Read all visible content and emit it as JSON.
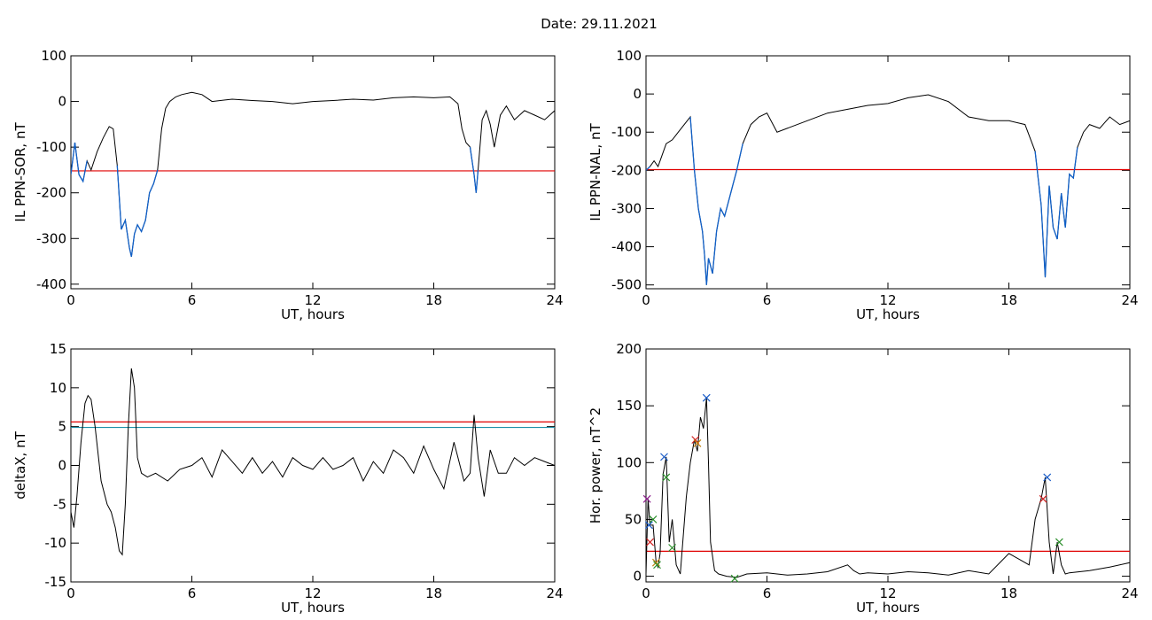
{
  "header": {
    "title": "Date:  29.11.2021"
  },
  "colors": {
    "trace": "#000000",
    "highlight": "#1060c8",
    "threshold_red": "#e00000",
    "threshold_teal": "#1a8fa8",
    "markers": [
      "#8b1a8b",
      "#d02020",
      "#2c8f2c",
      "#1a5cc8",
      "#c08010"
    ]
  },
  "chart_data": [
    {
      "type": "line",
      "xlabel": "UT, hours",
      "ylabel": "IL PPN-SOR, nT",
      "xlim": [
        0,
        24
      ],
      "ylim": [
        -410,
        100
      ],
      "xticks": [
        0,
        6,
        12,
        18,
        24
      ],
      "yticks": [
        100,
        0,
        -100,
        -200,
        -300,
        -400
      ],
      "thresholds": [
        {
          "value": -152,
          "color": "#e00000"
        }
      ],
      "highlight_below_threshold": true,
      "series": [
        {
          "x": [
            0,
            0.2,
            0.4,
            0.6,
            0.8,
            1.0,
            1.3,
            1.6,
            1.9,
            2.1,
            2.3,
            2.5,
            2.7,
            2.9,
            3.0,
            3.15,
            3.3,
            3.5,
            3.7,
            3.9,
            4.1,
            4.3,
            4.5,
            4.7,
            4.9,
            5.2,
            5.5,
            6,
            6.5,
            7,
            8,
            9,
            10,
            11,
            12,
            13,
            14,
            15,
            16,
            17,
            18,
            18.8,
            19.2,
            19.4,
            19.6,
            19.8,
            20.0,
            20.1,
            20.2,
            20.4,
            20.6,
            20.8,
            21.0,
            21.3,
            21.6,
            22,
            22.5,
            23,
            23.5,
            24
          ],
          "y": [
            -160,
            -90,
            -160,
            -175,
            -130,
            -150,
            -110,
            -80,
            -55,
            -60,
            -140,
            -280,
            -260,
            -320,
            -340,
            -290,
            -270,
            -285,
            -260,
            -200,
            -180,
            -150,
            -60,
            -15,
            0,
            10,
            15,
            20,
            15,
            0,
            5,
            2,
            0,
            -5,
            0,
            2,
            5,
            3,
            8,
            10,
            8,
            10,
            -5,
            -60,
            -90,
            -100,
            -160,
            -200,
            -150,
            -40,
            -20,
            -50,
            -100,
            -30,
            -10,
            -40,
            -20,
            -30,
            -40,
            -20
          ]
        }
      ]
    },
    {
      "type": "line",
      "xlabel": "UT, hours",
      "ylabel": "IL PPN-NAL, nT",
      "xlim": [
        0,
        24
      ],
      "ylim": [
        -510,
        100
      ],
      "xticks": [
        0,
        6,
        12,
        18,
        24
      ],
      "yticks": [
        100,
        0,
        -100,
        -200,
        -300,
        -400,
        -500
      ],
      "thresholds": [
        {
          "value": -198,
          "color": "#e00000"
        }
      ],
      "highlight_below_threshold": true,
      "series": [
        {
          "x": [
            0,
            0.2,
            0.4,
            0.6,
            0.8,
            1.0,
            1.3,
            1.6,
            1.9,
            2.2,
            2.4,
            2.6,
            2.8,
            2.9,
            3.0,
            3.1,
            3.3,
            3.5,
            3.7,
            3.9,
            4.1,
            4.3,
            4.5,
            4.8,
            5.2,
            5.6,
            6,
            6.5,
            7,
            8,
            9,
            10,
            11,
            12,
            13,
            14,
            15,
            16,
            17,
            18,
            18.8,
            19.3,
            19.6,
            19.8,
            20.0,
            20.2,
            20.4,
            20.6,
            20.8,
            21.0,
            21.2,
            21.4,
            21.7,
            22,
            22.5,
            23,
            23.5,
            24
          ],
          "y": [
            -200,
            -190,
            -175,
            -190,
            -160,
            -130,
            -120,
            -100,
            -80,
            -60,
            -200,
            -300,
            -360,
            -420,
            -500,
            -430,
            -470,
            -360,
            -300,
            -320,
            -280,
            -240,
            -200,
            -130,
            -80,
            -60,
            -50,
            -100,
            -90,
            -70,
            -50,
            -40,
            -30,
            -25,
            -10,
            -2,
            -20,
            -60,
            -70,
            -70,
            -80,
            -150,
            -290,
            -480,
            -240,
            -350,
            -380,
            -260,
            -350,
            -210,
            -220,
            -140,
            -100,
            -80,
            -90,
            -60,
            -80,
            -70
          ]
        }
      ]
    },
    {
      "type": "line",
      "xlabel": "UT, hours",
      "ylabel": "deltaX, nT",
      "xlim": [
        0,
        24
      ],
      "ylim": [
        -15,
        15
      ],
      "xticks": [
        0,
        6,
        12,
        18,
        24
      ],
      "yticks": [
        15,
        10,
        5,
        0,
        -5,
        -10,
        -15
      ],
      "thresholds": [
        {
          "value": 5.6,
          "color": "#e00000"
        },
        {
          "value": 4.9,
          "color": "#1a8fa8"
        }
      ],
      "highlight_below_threshold": false,
      "series": [
        {
          "x": [
            0,
            0.15,
            0.3,
            0.5,
            0.7,
            0.85,
            1.0,
            1.2,
            1.5,
            1.8,
            2.0,
            2.2,
            2.4,
            2.55,
            2.7,
            2.85,
            3.0,
            3.15,
            3.3,
            3.5,
            3.8,
            4.2,
            4.8,
            5.4,
            6,
            6.5,
            7,
            7.5,
            8,
            8.5,
            9,
            9.5,
            10,
            10.5,
            11,
            11.5,
            12,
            12.5,
            13,
            13.5,
            14,
            14.5,
            15,
            15.5,
            16,
            16.5,
            17,
            17.5,
            18,
            18.5,
            19,
            19.5,
            19.8,
            20.0,
            20.2,
            20.5,
            20.8,
            21.2,
            21.6,
            22,
            22.5,
            23,
            23.5,
            24
          ],
          "y": [
            -6,
            -8,
            -4,
            3,
            8,
            9,
            8.5,
            5,
            -2,
            -5,
            -6,
            -8,
            -11,
            -11.5,
            -5,
            5,
            12.5,
            10,
            1,
            -1,
            -1.5,
            -1,
            -2,
            -0.5,
            0,
            1,
            -1.5,
            2,
            0.5,
            -1,
            1,
            -1,
            0.5,
            -1.5,
            1,
            0,
            -0.5,
            1,
            -0.5,
            0,
            1,
            -2,
            0.5,
            -1,
            2,
            1,
            -1,
            2.5,
            -0.5,
            -3,
            3,
            -2,
            -1,
            6.5,
            1,
            -4,
            2,
            -1,
            -1,
            1,
            0,
            1,
            0.5,
            0
          ]
        }
      ]
    },
    {
      "type": "line",
      "xlabel": "UT, hours",
      "ylabel": "Hor. power, nT^2",
      "xlim": [
        0,
        24
      ],
      "ylim": [
        -5,
        200
      ],
      "xticks": [
        0,
        6,
        12,
        18,
        24
      ],
      "yticks": [
        200,
        150,
        100,
        50,
        0
      ],
      "thresholds": [
        {
          "value": 22,
          "color": "#e00000"
        }
      ],
      "highlight_below_threshold": false,
      "series": [
        {
          "x": [
            0,
            0.1,
            0.2,
            0.35,
            0.5,
            0.6,
            0.7,
            0.85,
            1.0,
            1.15,
            1.3,
            1.5,
            1.7,
            2.0,
            2.2,
            2.4,
            2.55,
            2.7,
            2.85,
            3.0,
            3.1,
            3.2,
            3.4,
            3.6,
            4.0,
            4.5,
            5,
            6,
            7,
            8,
            9,
            10,
            10.3,
            10.6,
            11,
            12,
            13,
            14,
            15,
            16,
            17,
            18,
            18.5,
            19,
            19.3,
            19.6,
            19.8,
            20.0,
            20.2,
            20.4,
            20.6,
            20.8,
            21,
            22,
            23,
            24
          ],
          "y": [
            2,
            68,
            45,
            45,
            12,
            8,
            20,
            90,
            105,
            30,
            50,
            10,
            2,
            70,
            100,
            120,
            110,
            140,
            130,
            157,
            100,
            30,
            5,
            2,
            0,
            -1,
            2,
            3,
            1,
            2,
            4,
            10,
            5,
            2,
            3,
            2,
            4,
            3,
            1,
            5,
            2,
            20,
            15,
            10,
            50,
            68,
            87,
            30,
            2,
            30,
            10,
            2,
            3,
            5,
            8,
            12
          ]
        }
      ],
      "markers": [
        {
          "x": 0.05,
          "y": 68,
          "color": "#8b1a8b"
        },
        {
          "x": 0.15,
          "y": 45,
          "color": "#1a5cc8"
        },
        {
          "x": 0.2,
          "y": 30,
          "color": "#d02020"
        },
        {
          "x": 0.35,
          "y": 50,
          "color": "#2c8f2c"
        },
        {
          "x": 0.5,
          "y": 12,
          "color": "#c08010"
        },
        {
          "x": 0.55,
          "y": 10,
          "color": "#2c8f2c"
        },
        {
          "x": 0.9,
          "y": 105,
          "color": "#1a5cc8"
        },
        {
          "x": 1.0,
          "y": 87,
          "color": "#2c8f2c"
        },
        {
          "x": 1.3,
          "y": 25,
          "color": "#2c8f2c"
        },
        {
          "x": 2.45,
          "y": 120,
          "color": "#d02020"
        },
        {
          "x": 2.55,
          "y": 117,
          "color": "#c08010"
        },
        {
          "x": 3.0,
          "y": 157,
          "color": "#1a5cc8"
        },
        {
          "x": 4.4,
          "y": -2,
          "color": "#2c8f2c"
        },
        {
          "x": 19.7,
          "y": 68,
          "color": "#d02020"
        },
        {
          "x": 19.9,
          "y": 87,
          "color": "#1a5cc8"
        },
        {
          "x": 20.5,
          "y": 30,
          "color": "#2c8f2c"
        }
      ]
    }
  ]
}
